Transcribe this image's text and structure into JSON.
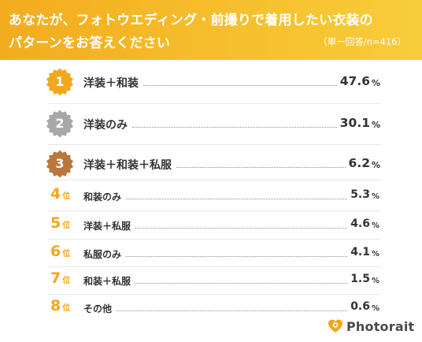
{
  "header": {
    "title_line1": "あなたが、フォトウエディング・前撮りで着用したい衣装の",
    "title_line2": "パターンをお答えください",
    "note": "（単一回答/n=416）"
  },
  "colors": {
    "header_background": "#f5b324",
    "gold": "#f2a81e",
    "silver": "#a8a8a8",
    "bronze": "#b9773d"
  },
  "rank_suffix": "位",
  "chart_data": {
    "type": "table",
    "title": "あなたが、フォトウエディング・前撮りで着用したい衣装のパターンをお答えください",
    "subtitle": "（単一回答/n=416）",
    "unit": "%",
    "rows": [
      {
        "rank": "1",
        "label": "洋装＋和装",
        "value": "47.6",
        "value_num": 47.6
      },
      {
        "rank": "2",
        "label": "洋装のみ",
        "value": "30.1",
        "value_num": 30.1
      },
      {
        "rank": "3",
        "label": "洋装＋和装＋私服",
        "value": "6.2",
        "value_num": 6.2
      },
      {
        "rank": "4",
        "label": "和装のみ",
        "value": "5.3",
        "value_num": 5.3
      },
      {
        "rank": "5",
        "label": "洋装＋私服",
        "value": "4.6",
        "value_num": 4.6
      },
      {
        "rank": "6",
        "label": "私服のみ",
        "value": "4.1",
        "value_num": 4.1
      },
      {
        "rank": "7",
        "label": "和装＋私服",
        "value": "1.5",
        "value_num": 1.5
      },
      {
        "rank": "8",
        "label": "その他",
        "value": "0.6",
        "value_num": 0.6
      }
    ]
  },
  "logo": {
    "text": "Photorait",
    "icon": "heart-camera-icon"
  }
}
